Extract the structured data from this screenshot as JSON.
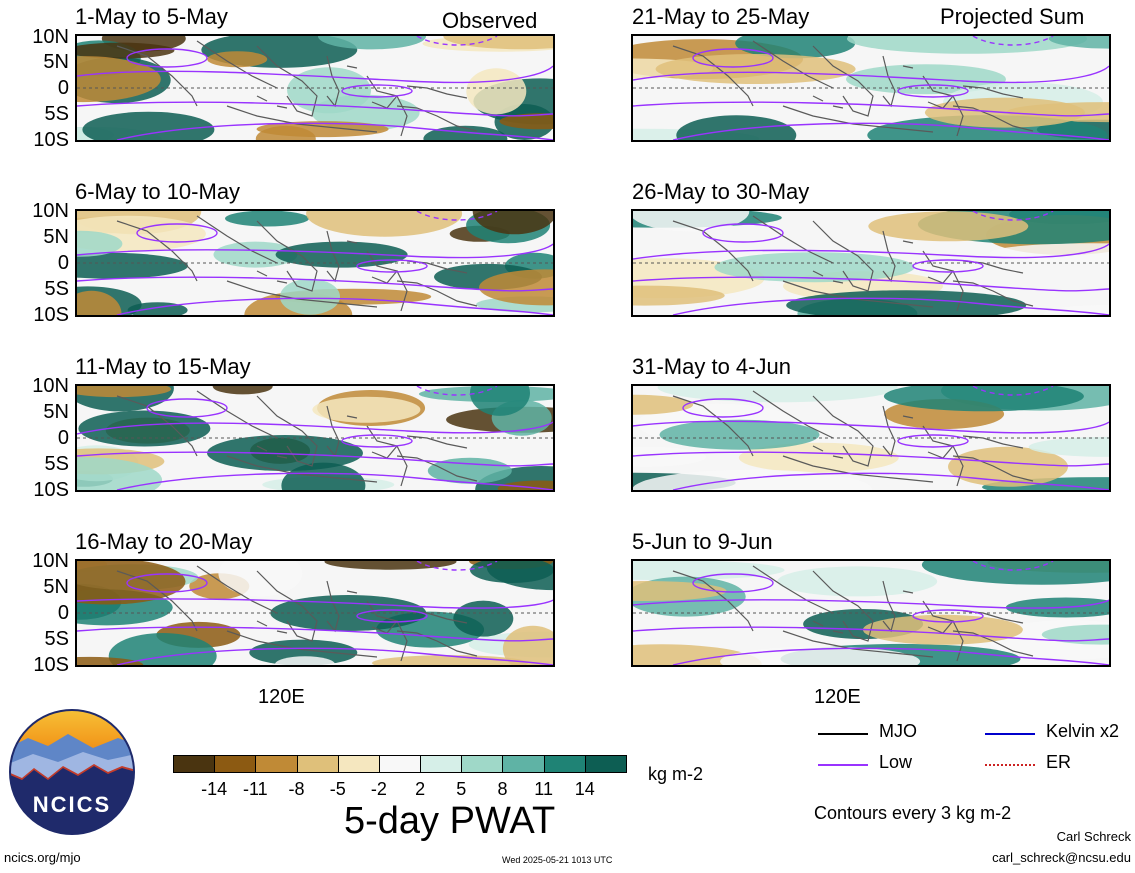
{
  "left_header": "Observed",
  "right_header": "Projected Sum",
  "lat_ticks": [
    "10N",
    "5N",
    "0",
    "5S",
    "10S"
  ],
  "lon_label": "120E",
  "panels_left": [
    {
      "title": "1-May to 5-May"
    },
    {
      "title": "6-May to 10-May"
    },
    {
      "title": "11-May to 15-May"
    },
    {
      "title": "16-May to 20-May"
    }
  ],
  "panels_right": [
    {
      "title": "21-May to 25-May"
    },
    {
      "title": "26-May to 30-May"
    },
    {
      "title": "31-May to 4-Jun"
    },
    {
      "title": "5-Jun to 9-Jun"
    }
  ],
  "colorbar": {
    "colors": [
      "#4a3410",
      "#8c5a12",
      "#c08a36",
      "#dfc07a",
      "#f5e7bf",
      "#f8f8f8",
      "#d6efe8",
      "#9fd8c8",
      "#5fb3a5",
      "#1f8375",
      "#0d5e53"
    ],
    "labels": [
      "-14",
      "-11",
      "-8",
      "-5",
      "-2",
      "2",
      "5",
      "8",
      "11",
      "14"
    ],
    "units": "kg m-2",
    "title": "5-day PWAT"
  },
  "legend": {
    "items": [
      {
        "label": "MJO",
        "color": "#000000"
      },
      {
        "label": "Kelvin x2",
        "color": "#0000cc"
      },
      {
        "label": "Low",
        "color": "#9933ff"
      },
      {
        "label": "ER",
        "color": "#cc2222"
      }
    ],
    "contour_note": "Contours every 3 kg m-2"
  },
  "logo_text": "NCICS",
  "footer": {
    "url": "ncics.org/mjo",
    "timestamp": "Wed 2025-05-21 1013 UTC",
    "author": "Carl Schreck",
    "email": "carl_schreck@ncsu.edu"
  }
}
